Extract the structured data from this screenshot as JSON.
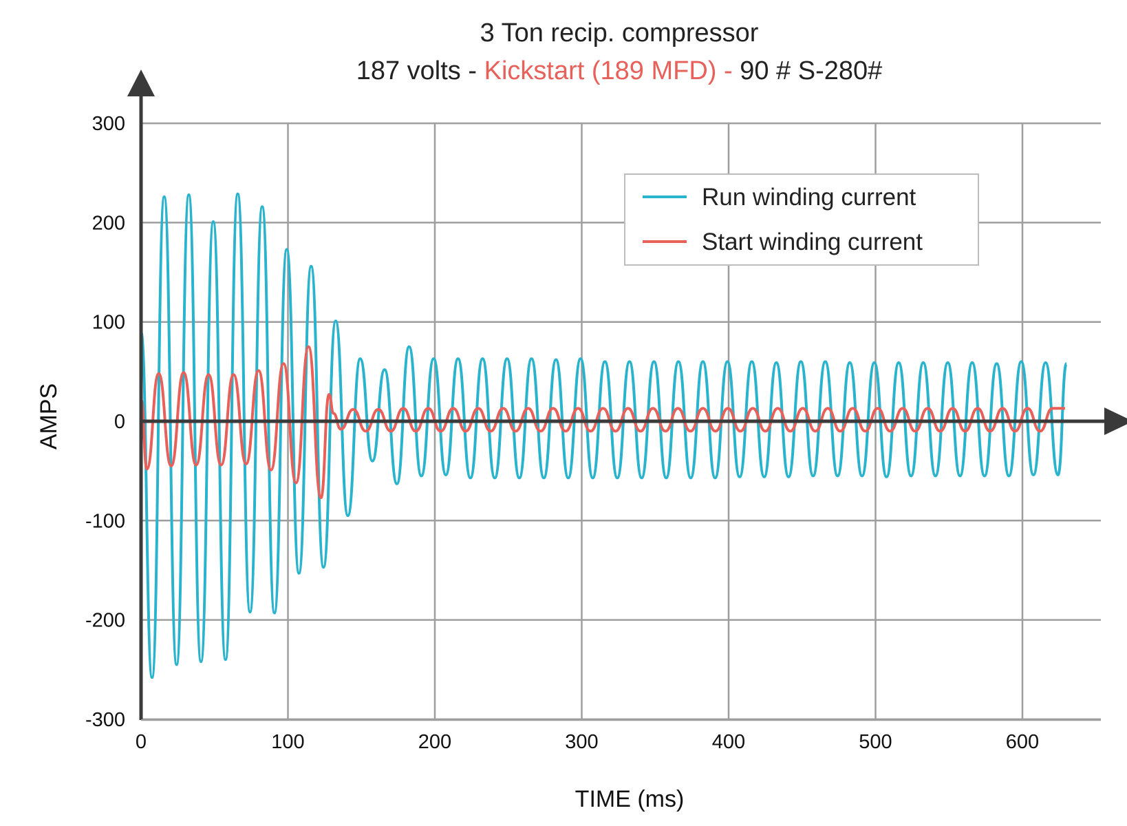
{
  "chart_data": {
    "type": "line",
    "title": "3 Ton recip. compressor",
    "subtitle": {
      "part1": "187 volts - ",
      "part2": "Kickstart (189 MFD) - ",
      "part3": "90 # S-280#"
    },
    "xlabel": "TIME (ms)",
    "ylabel": "AMPS",
    "xlim": [
      0,
      655
    ],
    "ylim": [
      -300,
      300
    ],
    "xticks": [
      0,
      100,
      200,
      300,
      400,
      500,
      600
    ],
    "yticks": [
      300,
      200,
      100,
      0,
      -100,
      -200,
      -300
    ],
    "grid": true,
    "legend_position": "top-right",
    "series": [
      {
        "name": "Run winding current",
        "color": "#29b3cc",
        "x": [
          0,
          7.5,
          15.8,
          24.2,
          32.5,
          40.8,
          49.2,
          57.5,
          65.8,
          74.2,
          82.5,
          90.8,
          99.2,
          107.5,
          115.8,
          124.2,
          132.5,
          140.8,
          149.2,
          157.5,
          165.8,
          174.2,
          182.5,
          190.8,
          199.2,
          207.5,
          215.8,
          224.2,
          232.5,
          240.8,
          249.2,
          257.5,
          265.8,
          274.2,
          282.5,
          290.8,
          299.2,
          307.5,
          315.8,
          324.2,
          332.5,
          340.8,
          349.2,
          357.5,
          365.8,
          374.2,
          382.5,
          390.8,
          399.2,
          407.5,
          415.8,
          424.2,
          432.5,
          440.8,
          449.2,
          457.5,
          465.8,
          474.2,
          482.5,
          490.8,
          499.2,
          507.5,
          515.8,
          524.2,
          532.5,
          540.8,
          549.2,
          557.5,
          565.8,
          574.2,
          582.5,
          590.8,
          599.2,
          607.5,
          615.8,
          624.2,
          630
        ],
        "values": [
          90,
          -258,
          226,
          -245,
          228,
          -242,
          201,
          -240,
          229,
          -192,
          216,
          -193,
          173,
          -153,
          156,
          -147,
          101,
          -95,
          63,
          -40,
          52,
          -63,
          75,
          -55,
          63,
          -54,
          63,
          -57,
          63,
          -57,
          63,
          -57,
          63,
          -57,
          62,
          -57,
          63,
          -57,
          60,
          -57,
          60,
          -57,
          60,
          -57,
          60,
          -57,
          60,
          -57,
          60,
          -56,
          60,
          -56,
          59,
          -56,
          60,
          -55,
          60,
          -55,
          59,
          -55,
          59,
          -56,
          59,
          -55,
          59,
          -55,
          59,
          -55,
          59,
          -55,
          58,
          -55,
          60,
          -54,
          59,
          -54,
          58
        ]
      },
      {
        "name": "Start winding current",
        "color": "#e8605a",
        "x": [
          0,
          4,
          12,
          20.5,
          29,
          37.5,
          46,
          54.5,
          63,
          71.5,
          80,
          88.5,
          97,
          105.5,
          114,
          122.5,
          128,
          131,
          136,
          144.5,
          153,
          161.5,
          170,
          178.5,
          187,
          195.5,
          204,
          212.5,
          221,
          229.5,
          238,
          246.5,
          255,
          263.5,
          272,
          280.5,
          289,
          297.5,
          306,
          314.5,
          323,
          331.5,
          340,
          348.5,
          357,
          365.5,
          374,
          382.5,
          391,
          399.5,
          408,
          416.5,
          425,
          433.5,
          442,
          450.5,
          459,
          467.5,
          476,
          484.5,
          493,
          501.5,
          510,
          518.5,
          527,
          535.5,
          544,
          552.5,
          561,
          569.5,
          578,
          586.5,
          595,
          603.5,
          612,
          620.5,
          629
        ],
        "values": [
          22,
          -48,
          48,
          -45,
          49,
          -44,
          47,
          -44,
          47,
          -43,
          51,
          -49,
          58,
          -62,
          75,
          -77,
          27,
          8,
          -8,
          12,
          -10,
          12,
          -10,
          13,
          -10,
          13,
          -10,
          13,
          -10,
          13,
          -10,
          13,
          -10,
          13,
          -10,
          13,
          -10,
          13,
          -10,
          13,
          -10,
          13,
          -10,
          13,
          -10,
          13,
          -10,
          13,
          -10,
          13,
          -10,
          13,
          -10,
          13,
          -10,
          13,
          -10,
          13,
          -10,
          13,
          -10,
          13,
          -10,
          13,
          -10,
          13,
          -10,
          13,
          -10,
          13,
          -10,
          13,
          -10,
          13,
          -10,
          13,
          13
        ]
      }
    ]
  }
}
